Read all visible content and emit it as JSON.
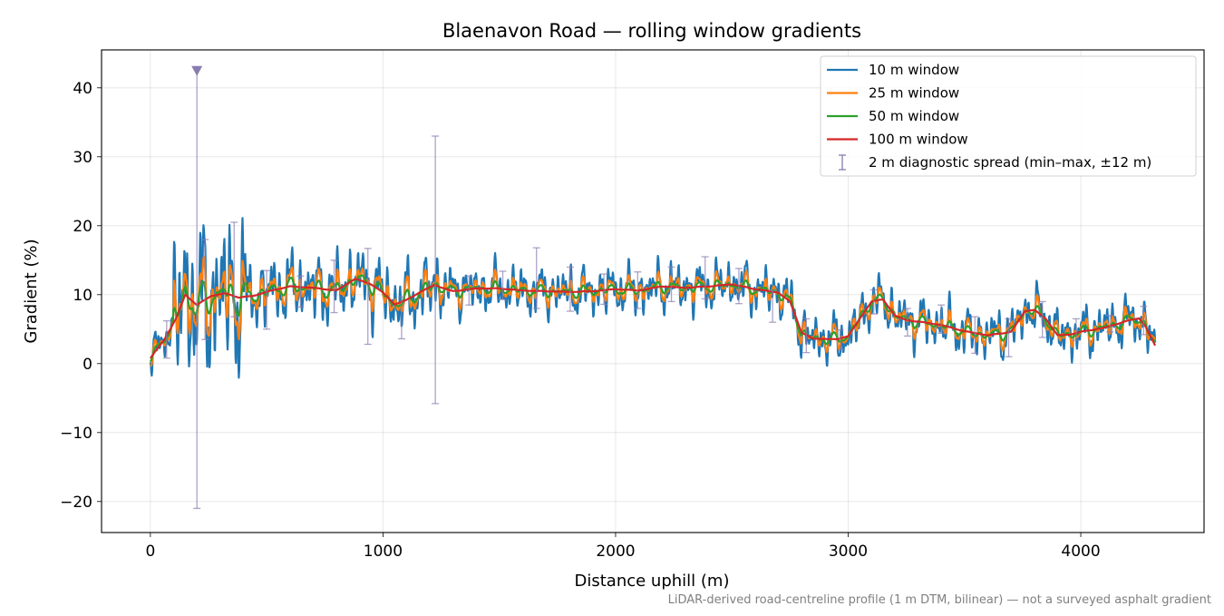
{
  "chart_data": {
    "type": "line",
    "title": "Blaenavon Road — rolling window gradients",
    "xlabel": "Distance uphill (m)",
    "ylabel": "Gradient (%)",
    "footnote": "LiDAR-derived road-centreline profile (1 m DTM, bilinear) — not a surveyed asphalt gradient",
    "xlim": [
      -210,
      4530
    ],
    "ylim": [
      -24.5,
      45.5
    ],
    "xticks": [
      0,
      1000,
      2000,
      3000,
      4000
    ],
    "xtick_labels": [
      "0",
      "1000",
      "2000",
      "3000",
      "4000"
    ],
    "yticks": [
      -20,
      -10,
      0,
      10,
      20,
      30,
      40
    ],
    "ytick_labels": [
      "−20",
      "−10",
      "0",
      "10",
      "20",
      "30",
      "40"
    ],
    "grid": true,
    "legend_position": "upper right",
    "base_profile": {
      "x": [
        0,
        60,
        110,
        150,
        200,
        260,
        320,
        380,
        440,
        520,
        600,
        700,
        800,
        880,
        950,
        1000,
        1050,
        1100,
        1150,
        1220,
        1300,
        1400,
        1500,
        1600,
        1700,
        1800,
        1900,
        2000,
        2100,
        2200,
        2300,
        2400,
        2500,
        2600,
        2700,
        2750,
        2800,
        2850,
        2900,
        2950,
        3000,
        3050,
        3100,
        3150,
        3200,
        3250,
        3300,
        3400,
        3500,
        3600,
        3700,
        3760,
        3800,
        3850,
        3900,
        3950,
        4000,
        4100,
        4200,
        4250,
        4280,
        4320
      ],
      "y": [
        0.8,
        3.5,
        6.5,
        10.0,
        8.5,
        9.8,
        10.2,
        9.6,
        9.8,
        10.6,
        11.2,
        11.0,
        10.6,
        12.3,
        11.5,
        10.3,
        8.6,
        9.2,
        10.2,
        11.4,
        10.5,
        10.9,
        10.9,
        10.6,
        10.5,
        10.4,
        10.5,
        10.8,
        10.6,
        11.2,
        11.0,
        11.2,
        11.5,
        10.8,
        10.3,
        9.0,
        4.5,
        3.6,
        3.6,
        3.5,
        4.0,
        6.5,
        9.0,
        9.3,
        7.0,
        6.3,
        6.1,
        5.6,
        4.7,
        4.1,
        4.6,
        7.6,
        7.8,
        6.5,
        4.1,
        4.2,
        4.6,
        5.2,
        6.2,
        6.6,
        5.3,
        2.6
      ]
    },
    "series": [
      {
        "name": "10 m window",
        "color": "#1f77b4",
        "window_m": 10
      },
      {
        "name": "25 m window",
        "color": "#ff7f0e",
        "window_m": 25
      },
      {
        "name": "50 m window",
        "color": "#2ca02c",
        "window_m": 50
      },
      {
        "name": "100 m window",
        "color": "#d62728",
        "window_m": 100
      }
    ],
    "diagnostic_spread": {
      "name": "2 m diagnostic spread (min–max, ±12 m)",
      "color": "#8a7cb0",
      "points": [
        {
          "x": 70,
          "low": 0.8,
          "high": 6.2
        },
        {
          "x": 200,
          "low": -21.0,
          "high": 42.5,
          "clipped": true
        },
        {
          "x": 235,
          "low": 3.5,
          "high": 18.0
        },
        {
          "x": 360,
          "low": 6.8,
          "high": 20.5
        },
        {
          "x": 500,
          "low": 5.0,
          "high": 13.5
        },
        {
          "x": 645,
          "low": 8.2,
          "high": 12.7
        },
        {
          "x": 790,
          "low": 7.4,
          "high": 15.0
        },
        {
          "x": 935,
          "low": 2.8,
          "high": 16.7
        },
        {
          "x": 1080,
          "low": 3.6,
          "high": 9.7
        },
        {
          "x": 1225,
          "low": -5.8,
          "high": 33.0
        },
        {
          "x": 1370,
          "low": 8.5,
          "high": 12.7
        },
        {
          "x": 1515,
          "low": 9.3,
          "high": 13.4
        },
        {
          "x": 1660,
          "low": 8.0,
          "high": 16.8
        },
        {
          "x": 1805,
          "low": 7.6,
          "high": 14.0
        },
        {
          "x": 1950,
          "low": 8.6,
          "high": 13.0
        },
        {
          "x": 2095,
          "low": 8.0,
          "high": 13.3
        },
        {
          "x": 2240,
          "low": 9.0,
          "high": 14.0
        },
        {
          "x": 2385,
          "low": 9.4,
          "high": 15.5
        },
        {
          "x": 2530,
          "low": 8.7,
          "high": 13.8
        },
        {
          "x": 2675,
          "low": 6.0,
          "high": 10.6
        },
        {
          "x": 2820,
          "low": 1.6,
          "high": 6.5
        },
        {
          "x": 2965,
          "low": 2.0,
          "high": 4.9
        },
        {
          "x": 3110,
          "low": 7.2,
          "high": 10.7
        },
        {
          "x": 3255,
          "low": 4.0,
          "high": 8.0
        },
        {
          "x": 3400,
          "low": 4.4,
          "high": 8.5
        },
        {
          "x": 3545,
          "low": 1.5,
          "high": 6.8
        },
        {
          "x": 3690,
          "low": 1.0,
          "high": 6.5
        },
        {
          "x": 3835,
          "low": 3.8,
          "high": 9.0
        },
        {
          "x": 3980,
          "low": 3.4,
          "high": 6.5
        },
        {
          "x": 4125,
          "low": 4.6,
          "high": 7.0
        },
        {
          "x": 4270,
          "low": 4.2,
          "high": 8.3
        }
      ]
    }
  }
}
